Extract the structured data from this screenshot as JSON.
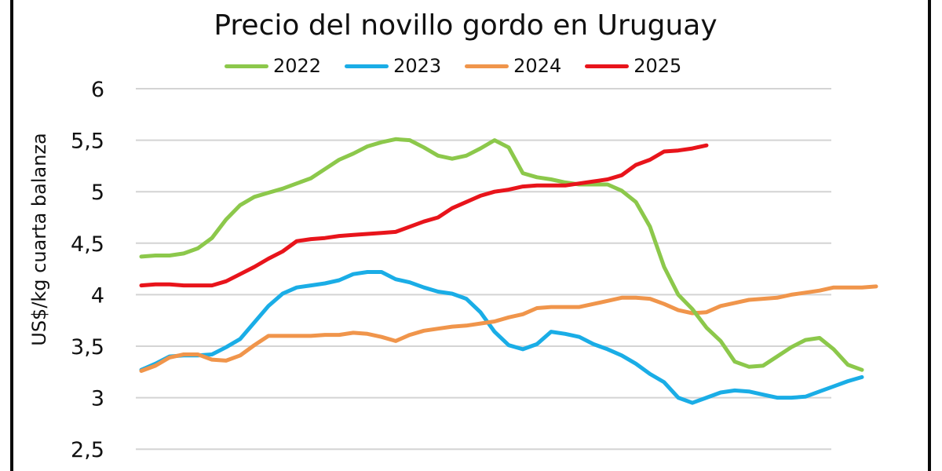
{
  "chart_data": {
    "type": "line",
    "title": "Precio del novillo gordo en Uruguay",
    "xlabel": "",
    "ylabel": "US$/kg cuarta balanza",
    "ylim": [
      2.5,
      6
    ],
    "yticks": [
      "2,5",
      "3",
      "3,5",
      "4",
      "4,5",
      "5",
      "5,5",
      "6"
    ],
    "ytick_values": [
      2.5,
      3,
      3.5,
      4,
      4.5,
      5,
      5.5,
      6
    ],
    "x_unit": "week",
    "x_range": [
      1,
      53
    ],
    "grid": true,
    "legend_position": "top",
    "series": [
      {
        "name": "2022",
        "color": "#8CC84B",
        "values": [
          4.37,
          4.38,
          4.38,
          4.4,
          4.45,
          4.55,
          4.73,
          4.87,
          4.95,
          4.99,
          5.03,
          5.08,
          5.13,
          5.22,
          5.31,
          5.37,
          5.44,
          5.48,
          5.51,
          5.5,
          5.43,
          5.35,
          5.32,
          5.35,
          5.42,
          5.5,
          5.43,
          5.18,
          5.14,
          5.12,
          5.09,
          5.07,
          5.07,
          5.07,
          5.01,
          4.9,
          4.66,
          4.27,
          4.0,
          3.86,
          3.68,
          3.55,
          3.35,
          3.3,
          3.31,
          3.4,
          3.49,
          3.56,
          3.58,
          3.47,
          3.32,
          3.27
        ]
      },
      {
        "name": "2023",
        "color": "#1AADE6",
        "values": [
          3.27,
          3.33,
          3.4,
          3.41,
          3.41,
          3.42,
          3.49,
          3.57,
          3.73,
          3.89,
          4.01,
          4.07,
          4.09,
          4.11,
          4.14,
          4.2,
          4.22,
          4.22,
          4.15,
          4.12,
          4.07,
          4.03,
          4.01,
          3.96,
          3.83,
          3.64,
          3.51,
          3.47,
          3.52,
          3.64,
          3.62,
          3.59,
          3.52,
          3.47,
          3.41,
          3.33,
          3.23,
          3.15,
          3.0,
          2.95,
          3.0,
          3.05,
          3.07,
          3.06,
          3.03,
          3.0,
          3.0,
          3.01,
          3.06,
          3.11,
          3.16,
          3.2
        ]
      },
      {
        "name": "2024",
        "color": "#F0954B",
        "values": [
          3.26,
          3.31,
          3.39,
          3.42,
          3.42,
          3.37,
          3.36,
          3.41,
          3.51,
          3.6,
          3.6,
          3.6,
          3.6,
          3.61,
          3.61,
          3.63,
          3.62,
          3.59,
          3.55,
          3.61,
          3.65,
          3.67,
          3.69,
          3.7,
          3.72,
          3.74,
          3.78,
          3.81,
          3.87,
          3.88,
          3.88,
          3.88,
          3.91,
          3.94,
          3.97,
          3.97,
          3.96,
          3.91,
          3.85,
          3.82,
          3.83,
          3.89,
          3.92,
          3.95,
          3.96,
          3.97,
          4.0,
          4.02,
          4.04,
          4.07,
          4.07,
          4.07,
          4.08
        ]
      },
      {
        "name": "2025",
        "color": "#E8141B",
        "values": [
          4.09,
          4.1,
          4.1,
          4.09,
          4.09,
          4.09,
          4.13,
          4.2,
          4.27,
          4.35,
          4.42,
          4.52,
          4.54,
          4.55,
          4.57,
          4.58,
          4.59,
          4.6,
          4.61,
          4.66,
          4.71,
          4.75,
          4.84,
          4.9,
          4.96,
          5.0,
          5.02,
          5.05,
          5.06,
          5.06,
          5.06,
          5.08,
          5.1,
          5.12,
          5.16,
          5.26,
          5.31,
          5.39,
          5.4,
          5.42,
          5.45
        ]
      }
    ]
  }
}
